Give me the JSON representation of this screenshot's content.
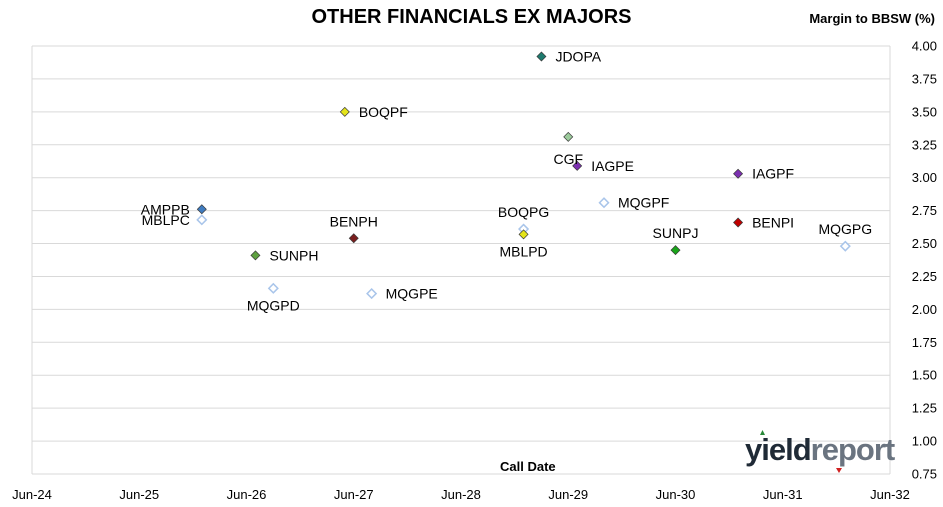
{
  "chart_data": {
    "type": "scatter",
    "title": "OTHER FINANCIALS EX MAJORS",
    "xlabel": "Call Date",
    "ylabel": "Margin to BBSW (%)",
    "xlim": [
      "2024-06",
      "2032-06"
    ],
    "ylim": [
      0.75,
      4.0
    ],
    "x_ticks": [
      "Jun-24",
      "Jun-25",
      "Jun-26",
      "Jun-27",
      "Jun-28",
      "Jun-29",
      "Jun-30",
      "Jun-31",
      "Jun-32"
    ],
    "y_ticks": [
      "0.75",
      "1.00",
      "1.25",
      "1.50",
      "1.75",
      "2.00",
      "2.25",
      "2.50",
      "2.75",
      "3.00",
      "3.25",
      "3.50",
      "3.75",
      "4.00"
    ],
    "grid": "horizontal",
    "points": [
      {
        "label": "JDOPA",
        "x": "2029-03",
        "y": 3.92,
        "color": "#1e7a6e",
        "filled": true,
        "label_pos": "right"
      },
      {
        "label": "BOQPF",
        "x": "2027-05",
        "y": 3.5,
        "color": "#e4e41a",
        "filled": true,
        "label_pos": "right"
      },
      {
        "label": "CGF",
        "x": "2029-06",
        "y": 3.31,
        "color": "#9ccb9c",
        "filled": true,
        "label_pos": "below-left"
      },
      {
        "label": "IAGPE",
        "x": "2029-07",
        "y": 3.09,
        "color": "#7b2fb0",
        "filled": true,
        "label_pos": "right"
      },
      {
        "label": "IAGPF",
        "x": "2031-01",
        "y": 3.03,
        "color": "#7b2fb0",
        "filled": true,
        "label_pos": "right"
      },
      {
        "label": "AMPPB",
        "x": "2026-01",
        "y": 2.76,
        "color": "#3f7cc0",
        "filled": true,
        "label_pos": "left"
      },
      {
        "label": "MBLPC",
        "x": "2026-01",
        "y": 2.68,
        "color": "#a9c5ea",
        "filled": false,
        "label_pos": "left"
      },
      {
        "label": "MQGPF",
        "x": "2029-10",
        "y": 2.81,
        "color": "#a9c5ea",
        "filled": false,
        "label_pos": "right"
      },
      {
        "label": "BENPH",
        "x": "2027-06",
        "y": 2.54,
        "color": "#7a1e1e",
        "filled": true,
        "label_pos": "above"
      },
      {
        "label": "BOQPG",
        "x": "2029-01",
        "y": 2.61,
        "color": "#a9c5ea",
        "filled": false,
        "label_pos": "above"
      },
      {
        "label": "MBLPD",
        "x": "2029-01",
        "y": 2.57,
        "color": "#e4e41a",
        "filled": true,
        "label_pos": "below"
      },
      {
        "label": "BENPI",
        "x": "2031-01",
        "y": 2.66,
        "color": "#c00000",
        "filled": true,
        "label_pos": "right"
      },
      {
        "label": "SUNPJ",
        "x": "2030-06",
        "y": 2.45,
        "color": "#1aa51a",
        "filled": true,
        "label_pos": "above"
      },
      {
        "label": "MQGPG",
        "x": "2032-01",
        "y": 2.48,
        "color": "#a9c5ea",
        "filled": false,
        "label_pos": "above"
      },
      {
        "label": "SUNPH",
        "x": "2026-07",
        "y": 2.41,
        "color": "#5ea040",
        "filled": true,
        "label_pos": "right"
      },
      {
        "label": "MQGPD",
        "x": "2026-09",
        "y": 2.16,
        "color": "#a9c5ea",
        "filled": false,
        "label_pos": "below"
      },
      {
        "label": "MQGPE",
        "x": "2027-08",
        "y": 2.12,
        "color": "#a9c5ea",
        "filled": false,
        "label_pos": "right"
      }
    ]
  },
  "logo": {
    "part1": "yield",
    "part2": "report"
  }
}
